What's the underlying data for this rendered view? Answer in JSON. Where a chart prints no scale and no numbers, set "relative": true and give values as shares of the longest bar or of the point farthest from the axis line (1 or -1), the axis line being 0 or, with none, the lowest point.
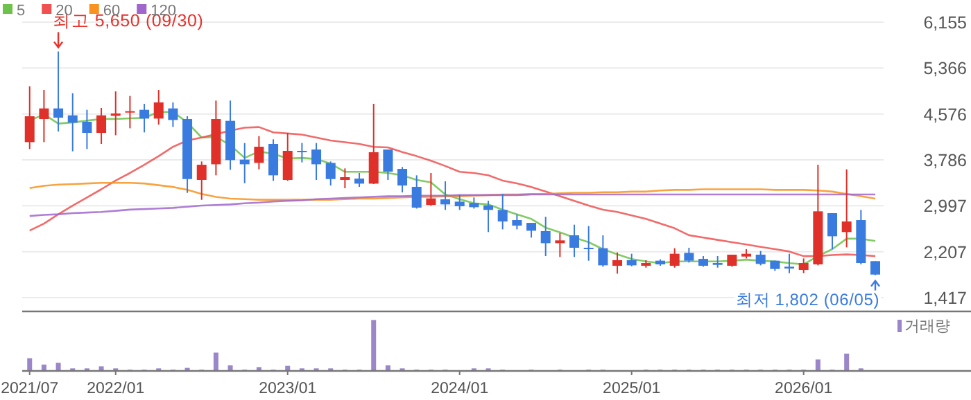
{
  "chart_data": [
    {
      "type": "candlestick",
      "tick_labels": "y",
      "grid": true,
      "legend": "top left",
      "categories": [
        null,
        null,
        null,
        null,
        null,
        null,
        null,
        null,
        null,
        null,
        null,
        null,
        null,
        null,
        null,
        null,
        null,
        null,
        null,
        null,
        null,
        null,
        null,
        null,
        null,
        null,
        null,
        null,
        null,
        null,
        null,
        null,
        null,
        null,
        null,
        null,
        null,
        null,
        null,
        null,
        null,
        null,
        null,
        null,
        null,
        null,
        null,
        null,
        null,
        null,
        null,
        null,
        null,
        null,
        null,
        null,
        null,
        null,
        null,
        null
      ],
      "ylim": [
        1179,
        6155
      ],
      "yticks": [
        {
          "value": 1417,
          "label": "1,417"
        },
        {
          "value": 2207,
          "label": "2,207"
        },
        {
          "value": 2997,
          "label": "2,997"
        },
        {
          "value": 3786,
          "label": "3,786"
        },
        {
          "value": 4576,
          "label": "4,576"
        },
        {
          "value": 5366,
          "label": "5,366"
        },
        {
          "value": 6155,
          "label": "6,155"
        }
      ],
      "ohlc": [
        [
          4091,
          5052,
          3972,
          4536
        ],
        [
          4488,
          4988,
          4091,
          4671
        ],
        [
          4671,
          5650,
          4274,
          4512
        ],
        [
          4552,
          4933,
          3933,
          4425
        ],
        [
          4441,
          4647,
          3972,
          4250
        ],
        [
          4250,
          4679,
          4060,
          4552
        ],
        [
          4544,
          4964,
          4210,
          4584
        ],
        [
          4615,
          4885,
          4329,
          4623
        ],
        [
          4647,
          4750,
          4258,
          4496
        ],
        [
          4496,
          4988,
          4393,
          4774
        ],
        [
          4671,
          4774,
          4353,
          4472
        ],
        [
          4488,
          4536,
          3218,
          3456
        ],
        [
          3441,
          3758,
          3099,
          3702
        ],
        [
          3710,
          4806,
          3520,
          4488
        ],
        [
          4457,
          4806,
          3615,
          3782
        ],
        [
          3790,
          4076,
          3385,
          3710
        ],
        [
          3734,
          4195,
          3623,
          4012
        ],
        [
          4060,
          4139,
          3425,
          3520
        ],
        [
          3441,
          4250,
          3425,
          3941
        ],
        [
          3941,
          4076,
          3742,
          3925
        ],
        [
          3964,
          4076,
          3441,
          3710
        ],
        [
          3734,
          3758,
          3345,
          3456
        ],
        [
          3441,
          3639,
          3298,
          3488
        ],
        [
          3464,
          3560,
          3322,
          3377
        ],
        [
          3377,
          4750,
          3370,
          3917
        ],
        [
          3964,
          3964,
          3441,
          3583
        ],
        [
          3631,
          3663,
          3226,
          3345
        ],
        [
          3322,
          3520,
          2948,
          2964
        ],
        [
          3012,
          3560,
          2996,
          3123
        ],
        [
          3107,
          3417,
          2925,
          3020
        ],
        [
          3067,
          3187,
          2925,
          2988
        ],
        [
          3044,
          3139,
          2948,
          2972
        ],
        [
          3004,
          3083,
          2544,
          2925
        ],
        [
          2925,
          3202,
          2591,
          2726
        ],
        [
          2750,
          2845,
          2591,
          2655
        ],
        [
          2702,
          2702,
          2448,
          2567
        ],
        [
          2560,
          2806,
          2131,
          2353
        ],
        [
          2353,
          2528,
          2115,
          2401
        ],
        [
          2488,
          2671,
          2115,
          2274
        ],
        [
          2274,
          2647,
          2052,
          2250
        ],
        [
          2266,
          2488,
          1948,
          1972
        ],
        [
          1964,
          2194,
          1829,
          2060
        ],
        [
          2060,
          2171,
          1956,
          1972
        ],
        [
          1964,
          2060,
          1932,
          2012
        ],
        [
          2052,
          2075,
          1964,
          1988
        ],
        [
          1964,
          2266,
          1932,
          2171
        ],
        [
          2186,
          2274,
          2020,
          2052
        ],
        [
          2083,
          2131,
          1948,
          1964
        ],
        [
          2012,
          2131,
          1932,
          1980
        ],
        [
          1964,
          2155,
          1948,
          2155
        ],
        [
          2123,
          2250,
          2091,
          2171
        ],
        [
          2155,
          2218,
          1972,
          1996
        ],
        [
          2052,
          2052,
          1877,
          1909
        ],
        [
          1948,
          2171,
          1837,
          1917
        ],
        [
          1893,
          2091,
          1837,
          2012
        ],
        [
          1988,
          3702,
          1972,
          2901
        ],
        [
          2869,
          2869,
          2250,
          2472
        ],
        [
          2544,
          3623,
          2282,
          2726
        ],
        [
          2750,
          2925,
          1988,
          2012
        ],
        [
          2044,
          2044,
          1802,
          1813
        ]
      ],
      "series": [
        {
          "name": "5",
          "type": "line",
          "color": "#6cc24a",
          "values": [
            4460,
            4570,
            4410,
            4430,
            4460,
            4490,
            4490,
            4500,
            4510,
            4610,
            4610,
            4430,
            4170,
            4180,
            4040,
            3820,
            3930,
            3890,
            3810,
            3820,
            3800,
            3720,
            3580,
            3580,
            3580,
            3560,
            3520,
            3440,
            3400,
            3190,
            3110,
            3040,
            3020,
            2930,
            2850,
            2770,
            2620,
            2540,
            2450,
            2370,
            2250,
            2160,
            2080,
            2040,
            2010,
            2040,
            2040,
            2040,
            2040,
            2050,
            2070,
            2050,
            2040,
            2010,
            1990,
            2130,
            2250,
            2430,
            2430,
            2390
          ]
        },
        {
          "name": "20",
          "type": "line",
          "color": "#f05050",
          "values": [
            2570,
            2690,
            2850,
            3000,
            3140,
            3280,
            3430,
            3560,
            3700,
            3850,
            4010,
            4120,
            4170,
            4230,
            4290,
            4340,
            4350,
            4260,
            4240,
            4220,
            4170,
            4120,
            4090,
            4060,
            4010,
            4000,
            3920,
            3850,
            3770,
            3680,
            3580,
            3560,
            3520,
            3430,
            3380,
            3320,
            3240,
            3160,
            3080,
            3000,
            2930,
            2890,
            2830,
            2770,
            2690,
            2610,
            2490,
            2450,
            2410,
            2370,
            2330,
            2290,
            2250,
            2210,
            2130,
            2130,
            2150,
            2160,
            2150,
            2130
          ]
        },
        {
          "name": "60",
          "type": "line",
          "color": "#f7931e",
          "values": [
            3300,
            3340,
            3360,
            3370,
            3380,
            3390,
            3390,
            3390,
            3380,
            3350,
            3320,
            3270,
            3200,
            3150,
            3120,
            3110,
            3100,
            3100,
            3100,
            3100,
            3100,
            3100,
            3110,
            3120,
            3120,
            3130,
            3140,
            3150,
            3150,
            3160,
            3160,
            3170,
            3180,
            3190,
            3190,
            3200,
            3200,
            3210,
            3220,
            3220,
            3230,
            3230,
            3240,
            3240,
            3260,
            3270,
            3270,
            3280,
            3280,
            3280,
            3280,
            3280,
            3270,
            3270,
            3270,
            3260,
            3240,
            3200,
            3160,
            3120
          ]
        },
        {
          "name": "120",
          "type": "line",
          "color": "#a066cc",
          "values": [
            2820,
            2840,
            2850,
            2870,
            2880,
            2890,
            2910,
            2930,
            2940,
            2950,
            2960,
            2980,
            3000,
            3010,
            3020,
            3040,
            3050,
            3070,
            3080,
            3090,
            3110,
            3120,
            3130,
            3140,
            3150,
            3160,
            3160,
            3170,
            3170,
            3170,
            3180,
            3180,
            3180,
            3180,
            3180,
            3190,
            3190,
            3190,
            3190,
            3190,
            3190,
            3190,
            3190,
            3190,
            3190,
            3190,
            3190,
            3190,
            3190,
            3190,
            3190,
            3190,
            3190,
            3190,
            3190,
            3190,
            3190,
            3190,
            3190,
            3190
          ]
        }
      ],
      "annotations": [
        "최고 5,650 (09/30)",
        "최저 1,802 (06/05)"
      ]
    },
    {
      "type": "bar",
      "relative": true,
      "tick_labels": "x",
      "legend": "top right",
      "categories": [
        "2021/07",
        null,
        null,
        null,
        null,
        null,
        "2022/01",
        null,
        null,
        null,
        null,
        null,
        null,
        null,
        null,
        null,
        null,
        null,
        "2023/01",
        null,
        null,
        null,
        null,
        null,
        null,
        null,
        null,
        null,
        null,
        null,
        "2024/01",
        null,
        null,
        null,
        null,
        null,
        null,
        null,
        null,
        null,
        null,
        null,
        "2025/01",
        null,
        null,
        null,
        null,
        null,
        null,
        null,
        null,
        null,
        null,
        null,
        "2026/01",
        null,
        null,
        null,
        null,
        null
      ],
      "series": [
        {
          "name": "거래량",
          "color": "#9a86c8",
          "values": [
            0.25,
            0.125,
            0.16,
            0.05,
            0.05,
            0.09,
            0.05,
            0.025,
            0.025,
            0.05,
            0.025,
            0.06,
            0.025,
            0.36,
            0.11,
            0.025,
            0.075,
            0.025,
            0.1,
            0.05,
            0.05,
            0.05,
            0.025,
            0.025,
            1,
            0.11,
            0.05,
            0.025,
            0.025,
            0.025,
            0,
            0.05,
            0.05,
            0.025,
            0,
            0.025,
            0,
            0.025,
            0,
            0.025,
            0.025,
            0,
            0,
            0.025,
            0.025,
            0.025,
            0.025,
            0.025,
            0.025,
            0.025,
            0.025,
            0.025,
            0.025,
            0.025,
            0.025,
            0.225,
            0.025,
            0.34,
            0.05,
            0
          ]
        }
      ]
    }
  ]
}
